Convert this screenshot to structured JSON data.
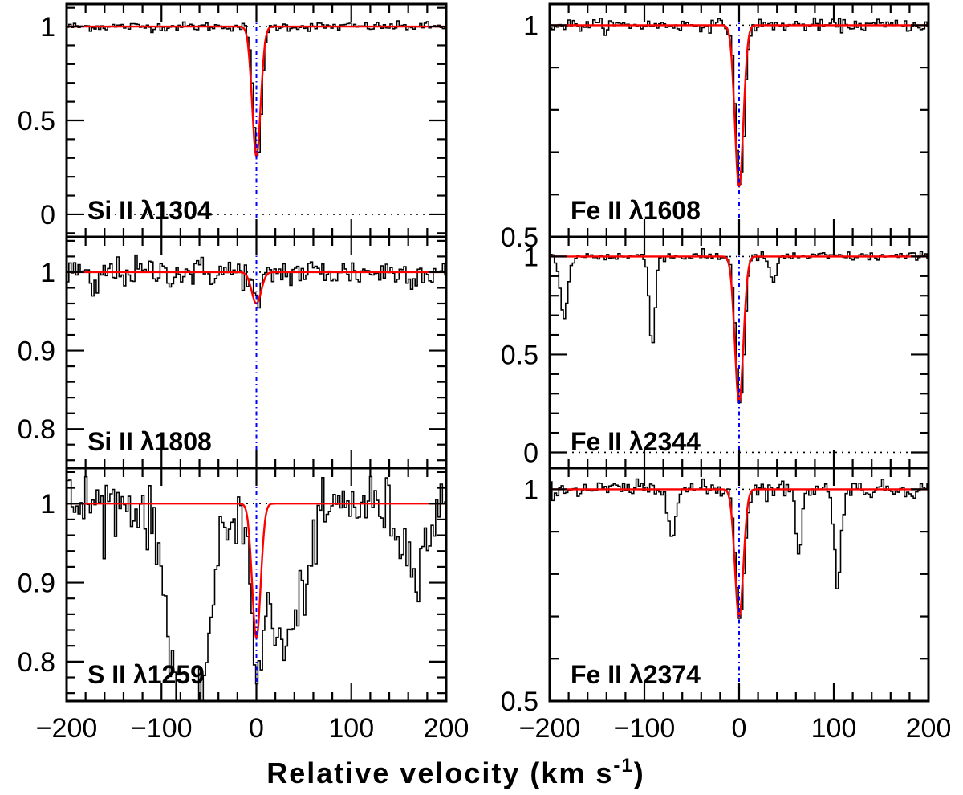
{
  "chart_data": {
    "type": "line",
    "description_axis": {
      "xlabel": "Relative velocity (km s",
      "xlabel_sup": "-1",
      "xlabel_close": ")",
      "xlim": [
        -200,
        200
      ],
      "xticks": [
        -200,
        -100,
        0,
        100,
        200
      ],
      "xtick_labels": [
        "−200",
        "−100",
        "0",
        "100",
        "200"
      ]
    },
    "colors": {
      "spectrum": "#000000",
      "model": "#ff0000",
      "zero_velocity": "#0000ff",
      "reference": "#000000"
    },
    "panels": [
      {
        "id": "si-ii-1304",
        "label": "Si II λ1304",
        "ylim": [
          -0.12,
          1.12
        ],
        "yticks": [
          0,
          0.5,
          1
        ],
        "ytick_labels": [
          "0",
          "0.5",
          "1"
        ],
        "zero_line": true,
        "model": {
          "center": 0,
          "depth": 0.69,
          "sigma": 4.5
        },
        "noise": 0.012,
        "features": []
      },
      {
        "id": "si-ii-1808",
        "label": "Si II λ1808",
        "ylim": [
          0.75,
          1.045
        ],
        "yticks": [
          0.8,
          0.9,
          1
        ],
        "ytick_labels": [
          "0.8",
          "0.9",
          "1"
        ],
        "zero_line": false,
        "model": {
          "center": 0,
          "depth": 0.04,
          "sigma": 5
        },
        "noise": 0.01,
        "features": [
          {
            "center": -173,
            "depth": 0.03,
            "sigma": 4
          }
        ]
      },
      {
        "id": "s-ii-1259",
        "label": "S II λ1259",
        "ylim": [
          0.75,
          1.045
        ],
        "yticks": [
          0.8,
          0.9,
          1
        ],
        "ytick_labels": [
          "0.8",
          "0.9",
          "1"
        ],
        "zero_line": false,
        "model": {
          "center": 0,
          "depth": 0.17,
          "sigma": 4.5
        },
        "noise": 0.02,
        "features": [
          {
            "center": -72,
            "depth": 0.32,
            "sigma": 18
          },
          {
            "center": 28,
            "depth": 0.18,
            "sigma": 20
          },
          {
            "center": 165,
            "depth": 0.07,
            "sigma": 14
          }
        ]
      },
      {
        "id": "fe-ii-1608",
        "label": "Fe II λ1608",
        "ylim": [
          0.5,
          1.05
        ],
        "yticks": [
          0.5,
          1
        ],
        "ytick_labels": [
          "0.5",
          "1"
        ],
        "zero_line": false,
        "model": {
          "center": 0,
          "depth": 0.38,
          "sigma": 4.5
        },
        "noise": 0.007,
        "features": []
      },
      {
        "id": "fe-ii-2344",
        "label": "Fe II λ2344",
        "ylim": [
          -0.08,
          1.1
        ],
        "yticks": [
          0,
          0.5,
          1
        ],
        "ytick_labels": [
          "0",
          "0.5",
          "1"
        ],
        "zero_line": true,
        "model": {
          "center": 0,
          "depth": 0.74,
          "sigma": 4.5
        },
        "noise": 0.012,
        "features": [
          {
            "center": -186,
            "depth": 0.32,
            "sigma": 4
          },
          {
            "center": -93,
            "depth": 0.45,
            "sigma": 3
          },
          {
            "center": 35,
            "depth": 0.12,
            "sigma": 4
          }
        ]
      },
      {
        "id": "fe-ii-2374",
        "label": "Fe II λ2374",
        "ylim": [
          0.5,
          1.05
        ],
        "yticks": [
          0.5,
          1
        ],
        "ytick_labels": [
          "0.5",
          "1"
        ],
        "zero_line": false,
        "model": {
          "center": 0,
          "depth": 0.3,
          "sigma": 4.5
        },
        "noise": 0.01,
        "features": [
          {
            "center": -72,
            "depth": 0.09,
            "sigma": 4
          },
          {
            "center": 62,
            "depth": 0.17,
            "sigma": 2.5
          },
          {
            "center": 103,
            "depth": 0.22,
            "sigma": 3.5
          }
        ]
      }
    ]
  }
}
